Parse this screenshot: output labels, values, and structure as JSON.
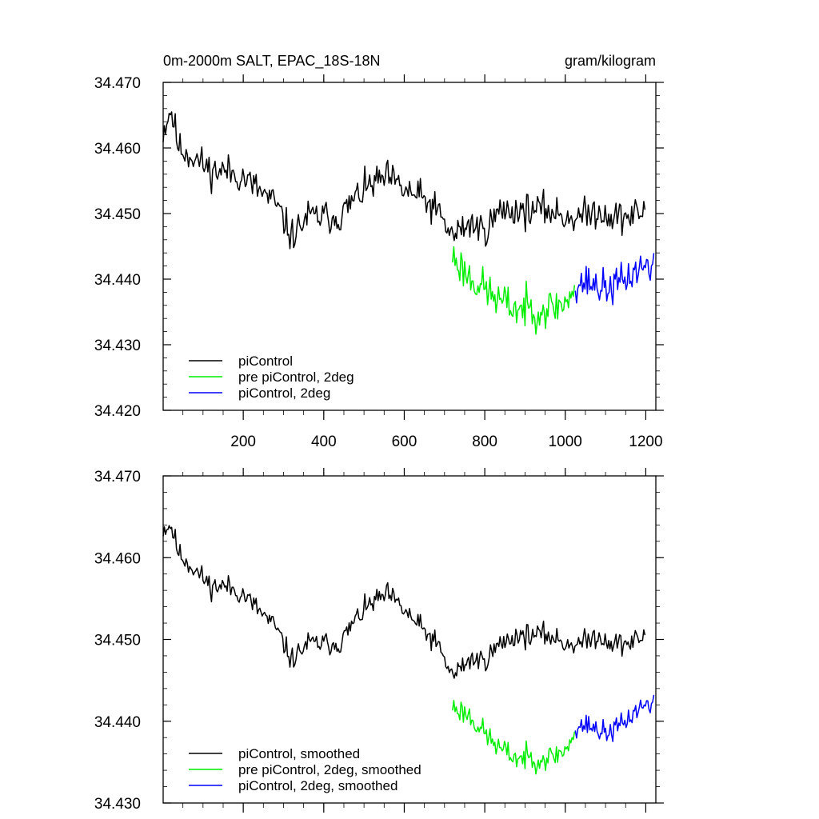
{
  "chart_data": [
    {
      "type": "line",
      "title_left": "0m-2000m SALT, EPAC_18S-18N",
      "title_right": "gram/kilogram",
      "xlim": [
        1,
        1225
      ],
      "ylim": [
        34.42,
        34.47
      ],
      "x_ticks": [
        200,
        400,
        600,
        800,
        1000,
        1200
      ],
      "x_tick_labels": [
        "200",
        "400",
        "600",
        "800",
        "1000",
        "1200"
      ],
      "y_ticks": [
        34.42,
        34.43,
        34.44,
        34.45,
        34.46,
        34.47
      ],
      "y_tick_labels": [
        "34.420",
        "34.430",
        "34.440",
        "34.450",
        "34.460",
        "34.470"
      ],
      "legend": "bottom-left",
      "series": [
        {
          "name": "piControl",
          "color": "#000000",
          "x_range": [
            1,
            1200
          ],
          "anchors": [
            [
              1,
              34.4625
            ],
            [
              20,
              34.466
            ],
            [
              40,
              34.46
            ],
            [
              80,
              34.4585
            ],
            [
              120,
              34.4565
            ],
            [
              160,
              34.4565
            ],
            [
              200,
              34.4555
            ],
            [
              240,
              34.4535
            ],
            [
              280,
              34.4515
            ],
            [
              320,
              34.4465
            ],
            [
              360,
              34.4495
            ],
            [
              400,
              34.4495
            ],
            [
              440,
              34.4495
            ],
            [
              480,
              34.4525
            ],
            [
              520,
              34.4545
            ],
            [
              560,
              34.4555
            ],
            [
              600,
              34.4535
            ],
            [
              640,
              34.4525
            ],
            [
              680,
              34.4505
            ],
            [
              720,
              34.4465
            ],
            [
              760,
              34.4485
            ],
            [
              800,
              34.4475
            ],
            [
              840,
              34.4505
            ],
            [
              880,
              34.4505
            ],
            [
              920,
              34.4505
            ],
            [
              960,
              34.4505
            ],
            [
              1000,
              34.4495
            ],
            [
              1040,
              34.4495
            ],
            [
              1080,
              34.4505
            ],
            [
              1120,
              34.4495
            ],
            [
              1160,
              34.4495
            ],
            [
              1200,
              34.4505
            ]
          ],
          "noise": 0.0022,
          "seed": 11
        },
        {
          "name": "pre piControl, 2deg",
          "color": "#00ee00",
          "x_range": [
            720,
            1025
          ],
          "anchors": [
            [
              720,
              34.4435
            ],
            [
              760,
              34.4405
            ],
            [
              800,
              34.4385
            ],
            [
              840,
              34.4365
            ],
            [
              880,
              34.4355
            ],
            [
              920,
              34.4355
            ],
            [
              960,
              34.4355
            ],
            [
              1000,
              34.4365
            ],
            [
              1025,
              34.4385
            ]
          ],
          "noise": 0.0026,
          "seed": 23
        },
        {
          "name": "piControl, 2deg",
          "color": "#0000ff",
          "x_range": [
            1025,
            1222
          ],
          "anchors": [
            [
              1025,
              34.4395
            ],
            [
              1060,
              34.4395
            ],
            [
              1100,
              34.4385
            ],
            [
              1140,
              34.4395
            ],
            [
              1180,
              34.4415
            ],
            [
              1222,
              34.4425
            ]
          ],
          "noise": 0.0024,
          "seed": 37
        }
      ]
    },
    {
      "type": "line",
      "xlim": [
        1,
        1225
      ],
      "ylim": [
        34.43,
        34.47
      ],
      "x_ticks": [
        200,
        400,
        600,
        800,
        1000,
        1200
      ],
      "y_ticks": [
        34.43,
        34.44,
        34.45,
        34.46,
        34.47
      ],
      "y_tick_labels": [
        "34.430",
        "34.440",
        "34.450",
        "34.460",
        "34.470"
      ],
      "legend": "bottom-left",
      "series": [
        {
          "name": "piControl, smoothed",
          "color": "#000000",
          "x_range": [
            1,
            1200
          ],
          "anchors": [
            [
              1,
              34.4635
            ],
            [
              20,
              34.464
            ],
            [
              40,
              34.4605
            ],
            [
              80,
              34.4585
            ],
            [
              120,
              34.4565
            ],
            [
              160,
              34.4565
            ],
            [
              200,
              34.4555
            ],
            [
              240,
              34.4535
            ],
            [
              280,
              34.4515
            ],
            [
              320,
              34.4475
            ],
            [
              360,
              34.4495
            ],
            [
              400,
              34.4495
            ],
            [
              440,
              34.4495
            ],
            [
              480,
              34.4525
            ],
            [
              520,
              34.4545
            ],
            [
              560,
              34.4555
            ],
            [
              600,
              34.4535
            ],
            [
              640,
              34.4515
            ],
            [
              680,
              34.4495
            ],
            [
              720,
              34.4455
            ],
            [
              760,
              34.4475
            ],
            [
              800,
              34.4475
            ],
            [
              840,
              34.4495
            ],
            [
              880,
              34.4505
            ],
            [
              920,
              34.4505
            ],
            [
              960,
              34.4505
            ],
            [
              1000,
              34.4495
            ],
            [
              1040,
              34.4495
            ],
            [
              1080,
              34.4505
            ],
            [
              1120,
              34.4495
            ],
            [
              1160,
              34.4495
            ],
            [
              1200,
              34.4505
            ]
          ],
          "noise": 0.0012,
          "seed": 11
        },
        {
          "name": "pre piControl, 2deg, smoothed",
          "color": "#00ee00",
          "x_range": [
            720,
            1025
          ],
          "anchors": [
            [
              720,
              34.4418
            ],
            [
              760,
              34.4408
            ],
            [
              800,
              34.4385
            ],
            [
              840,
              34.4365
            ],
            [
              880,
              34.4355
            ],
            [
              920,
              34.4355
            ],
            [
              960,
              34.4355
            ],
            [
              1000,
              34.4365
            ],
            [
              1025,
              34.4385
            ]
          ],
          "noise": 0.0013,
          "seed": 23
        },
        {
          "name": "piControl, 2deg, smoothed",
          "color": "#0000ff",
          "x_range": [
            1025,
            1222
          ],
          "anchors": [
            [
              1025,
              34.4395
            ],
            [
              1060,
              34.4395
            ],
            [
              1100,
              34.4385
            ],
            [
              1140,
              34.4395
            ],
            [
              1180,
              34.4415
            ],
            [
              1222,
              34.4425
            ]
          ],
          "noise": 0.0012,
          "seed": 37
        }
      ]
    }
  ]
}
